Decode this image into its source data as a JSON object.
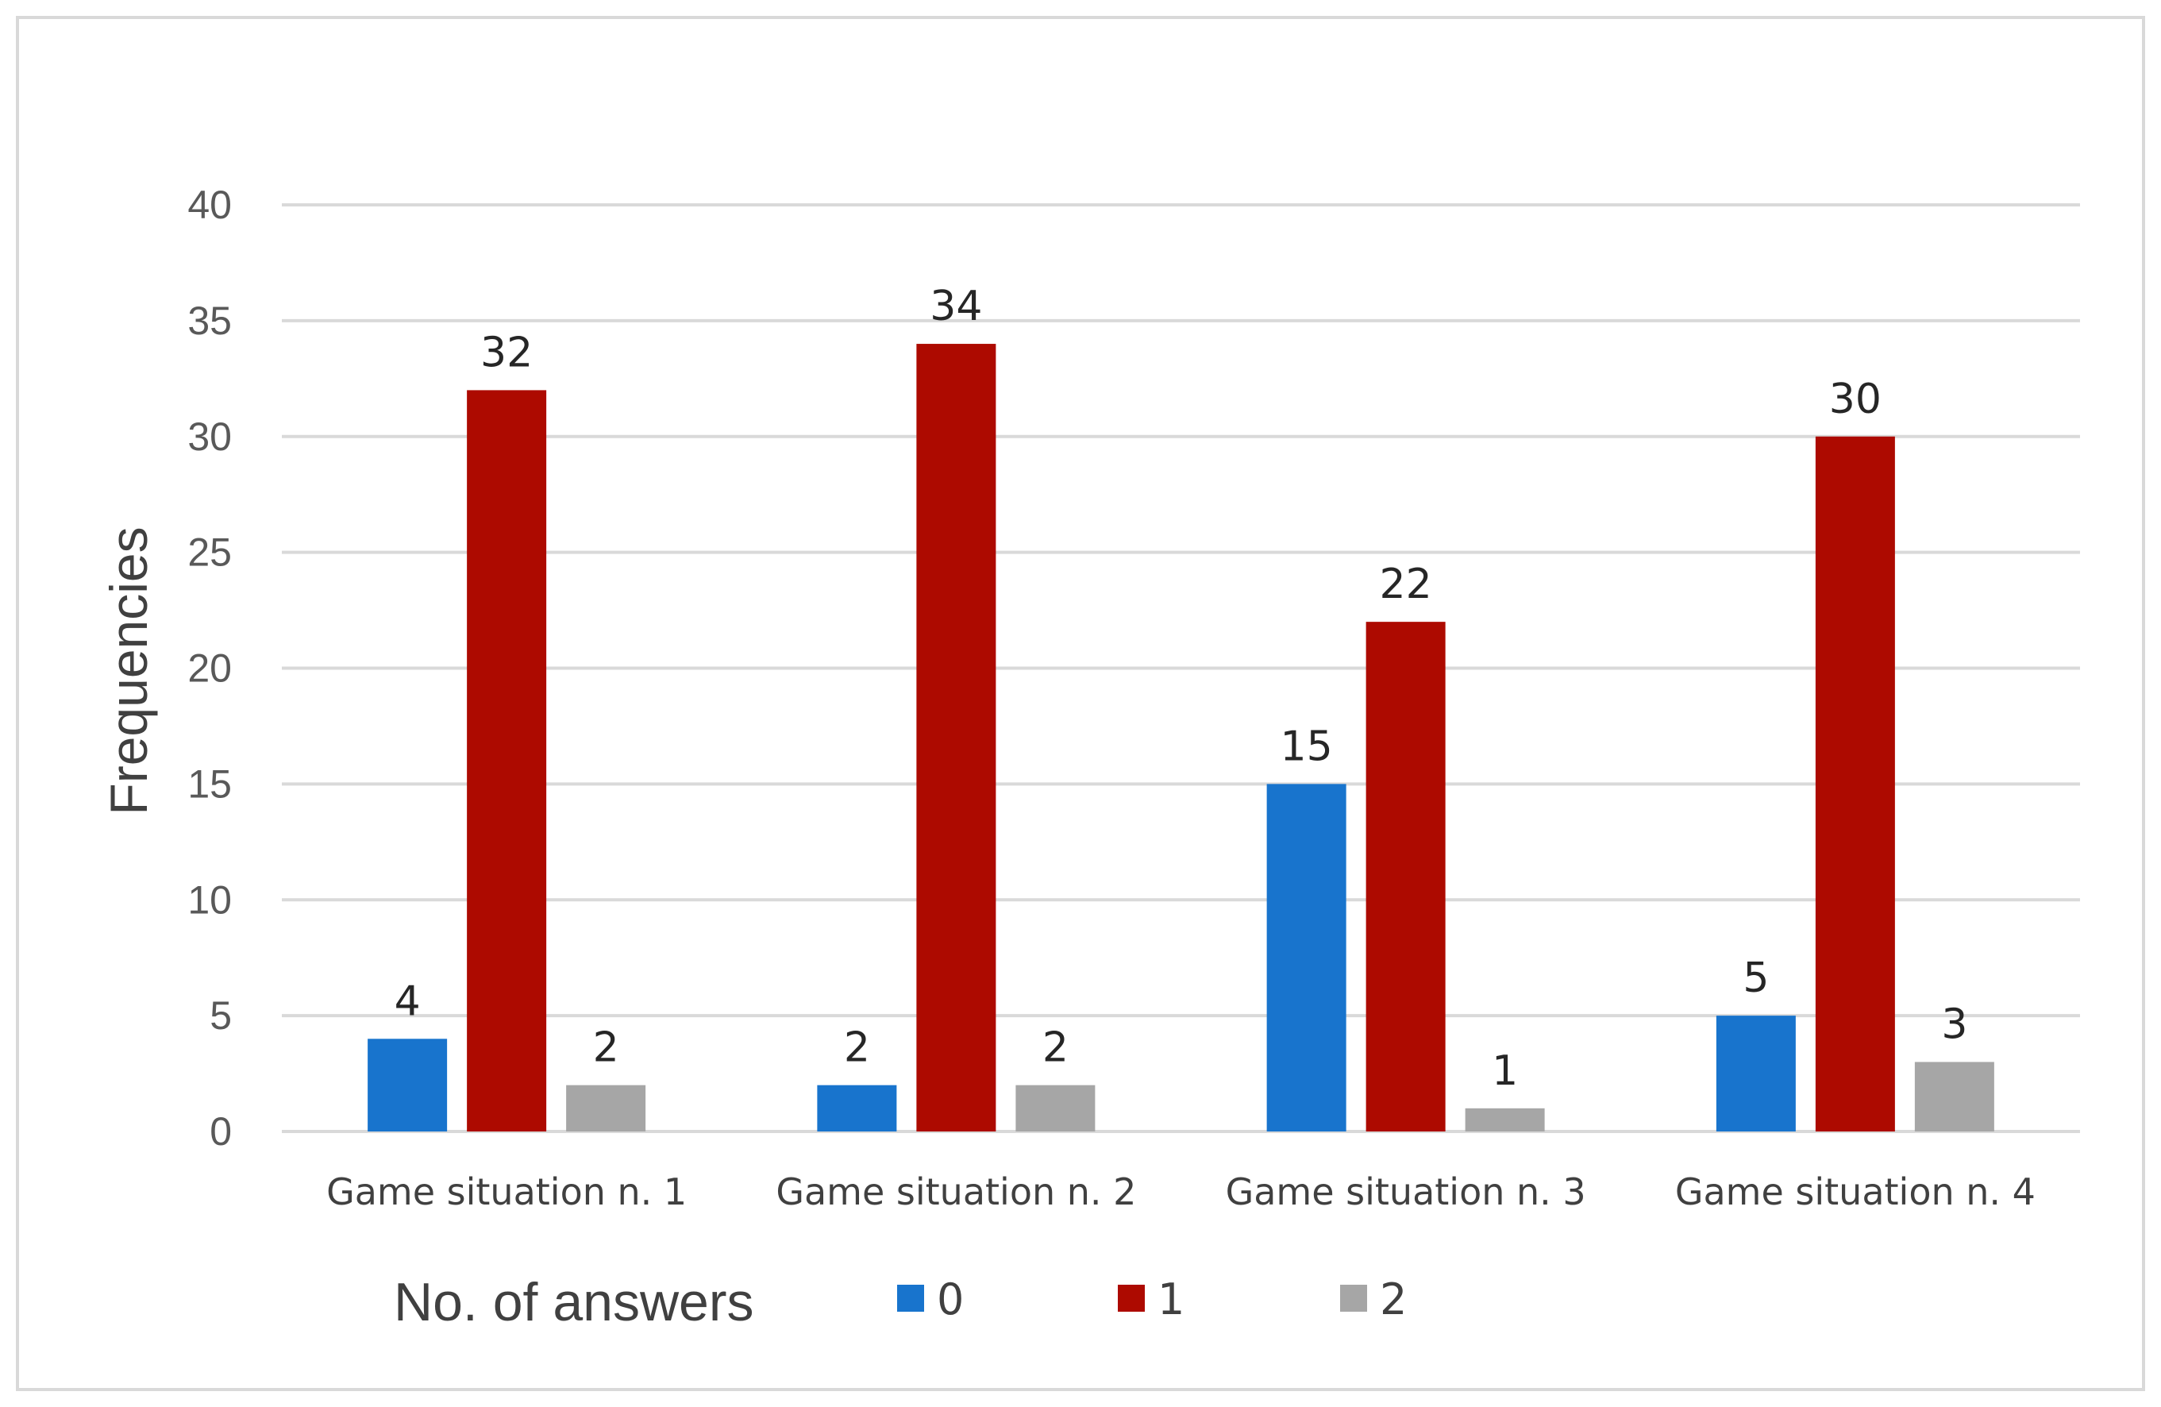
{
  "chart_data": {
    "type": "bar",
    "ylabel": "Frequencies",
    "ylim": [
      0,
      40
    ],
    "yticks": [
      0,
      5,
      10,
      15,
      20,
      25,
      30,
      35,
      40
    ],
    "grid": true,
    "categories": [
      "Game situation n. 1",
      "Game situation n. 2",
      "Game situation n. 3",
      "Game situation n. 4"
    ],
    "legend_title": "No. of answers",
    "legend_position": "bottom",
    "data_labels": true,
    "series": [
      {
        "name": "0",
        "color": "#1874cd",
        "values": [
          4,
          2,
          15,
          5
        ]
      },
      {
        "name": "1",
        "color": "#ad0a00",
        "values": [
          32,
          34,
          22,
          30
        ]
      },
      {
        "name": "2",
        "color": "#a6a6a6",
        "values": [
          2,
          2,
          1,
          3
        ]
      }
    ]
  }
}
